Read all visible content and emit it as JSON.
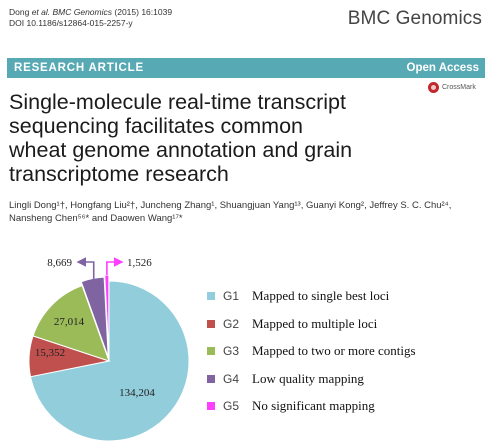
{
  "header": {
    "citation_line1_authors": "Dong",
    "citation_line1_etal": "et al. BMC Genomics",
    "citation_line1_rest": "(2015) 16:1039",
    "citation_line2": "DOI 10.1186/s12864-015-2257-y",
    "journal": "BMC Genomics"
  },
  "banner": {
    "left": "RESEARCH ARTICLE",
    "right": "Open Access"
  },
  "crossmark": {
    "label": "CrossMark"
  },
  "title_lines": [
    "Single-molecule real-time transcript",
    "sequencing facilitates common",
    "wheat genome annotation and grain",
    "transcriptome research"
  ],
  "authors": {
    "line1": "Lingli Dong¹†, Hongfang Liu²†, Juncheng Zhang¹, Shuangjuan Yang¹³, Guanyi Kong², Jeffrey S. C. Chu²⁴,",
    "line2": "Nansheng Chen⁵⁶* and Daowen Wang¹⁷*"
  },
  "chart_data": {
    "type": "pie",
    "categories": [
      "G1",
      "G2",
      "G3",
      "G4",
      "G5"
    ],
    "values": [
      134204,
      15352,
      27014,
      8669,
      1526
    ],
    "value_labels": [
      "134,204",
      "15,352",
      "27,014",
      "8,669",
      "1,526"
    ],
    "legend": [
      {
        "code": "G1",
        "label": "Mapped to single best loci"
      },
      {
        "code": "G2",
        "label": "Mapped to multiple loci"
      },
      {
        "code": "G3",
        "label": "Mapped to two or more contigs"
      },
      {
        "code": "G4",
        "label": "Low quality mapping"
      },
      {
        "code": "G5",
        "label": "No significant mapping"
      }
    ],
    "colors": [
      "#92cddc",
      "#c0504d",
      "#9bbb59",
      "#8064a2",
      "#ff3fff"
    ],
    "legend_placement": "right",
    "start": "12 o'clock",
    "direction": "clockwise",
    "exploded": [
      "G4",
      "G5"
    ]
  }
}
